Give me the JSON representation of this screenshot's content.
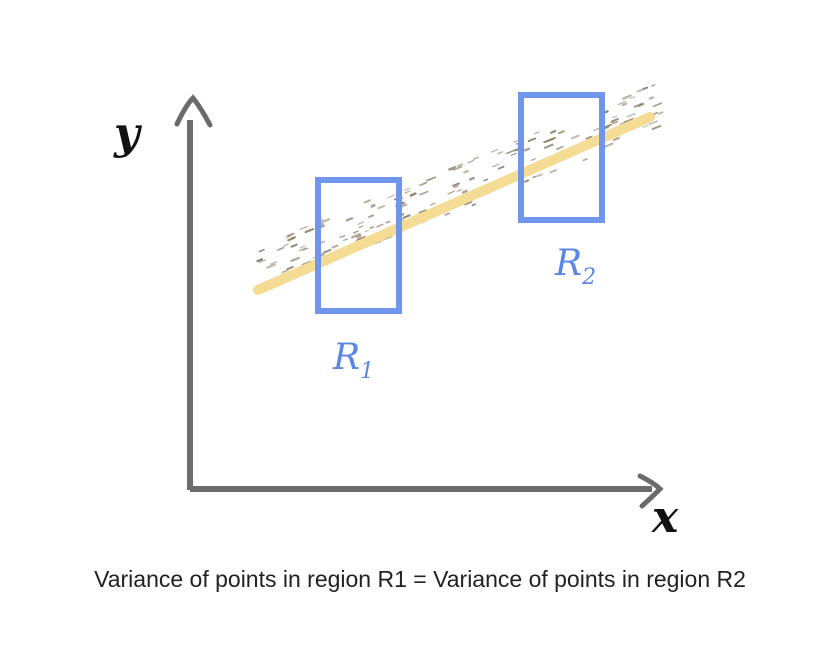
{
  "axes": {
    "x_label": "x",
    "y_label": "y"
  },
  "regions": [
    {
      "label": "R",
      "subscript": "1"
    },
    {
      "label": "R",
      "subscript": "2"
    }
  ],
  "caption": "Variance of points in region R1 = Variance of points in region R2",
  "colors": {
    "axis": "#6b6b6b",
    "fit_line": "#f5dc94",
    "region_box": "#6f96ea",
    "region_label": "#5b86e6",
    "points": "#8a7a62",
    "axis_label": "#111111"
  }
}
